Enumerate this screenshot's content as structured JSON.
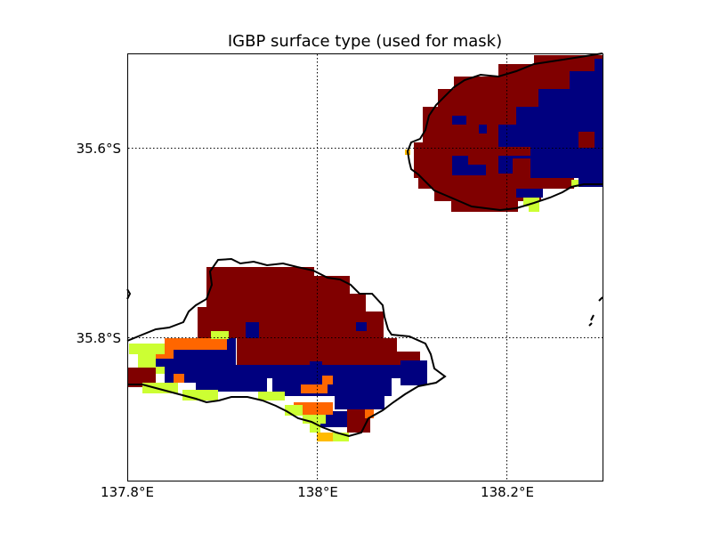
{
  "title": "IGBP surface type (used for mask)",
  "x_ticks": [
    {
      "value": 137.8,
      "label": "137.8°E"
    },
    {
      "value": 138.0,
      "label": "138°E"
    },
    {
      "value": 138.2,
      "label": "138.2°E"
    }
  ],
  "y_ticks": [
    {
      "value": -35.6,
      "label": "35.6°S"
    },
    {
      "value": -35.8,
      "label": "35.8°S"
    }
  ],
  "map": {
    "lon_range": [
      137.8,
      138.3
    ],
    "lat_range": [
      -35.95,
      -35.5
    ],
    "grid": "dotted",
    "colorbar": false
  },
  "colors": {
    "dark_red": "#800000",
    "navy": "#00007f",
    "orange": "#ff6600",
    "amber": "#ffbb00",
    "yellow_green": "#ccff33",
    "coastline": "#000000"
  },
  "chart_data": {
    "type": "heatmap",
    "title": "IGBP surface type (used for mask)",
    "x_tick_labels": [
      "137.8°E",
      "138°E",
      "138.2°E"
    ],
    "y_tick_labels": [
      "35.6°S",
      "35.8°S"
    ],
    "x_range": [
      137.8,
      138.3
    ],
    "y_range": [
      -35.95,
      -35.5
    ],
    "grid": true,
    "categories_shown": [
      "dark_red",
      "navy",
      "orange",
      "amber",
      "yellow_green"
    ]
  }
}
